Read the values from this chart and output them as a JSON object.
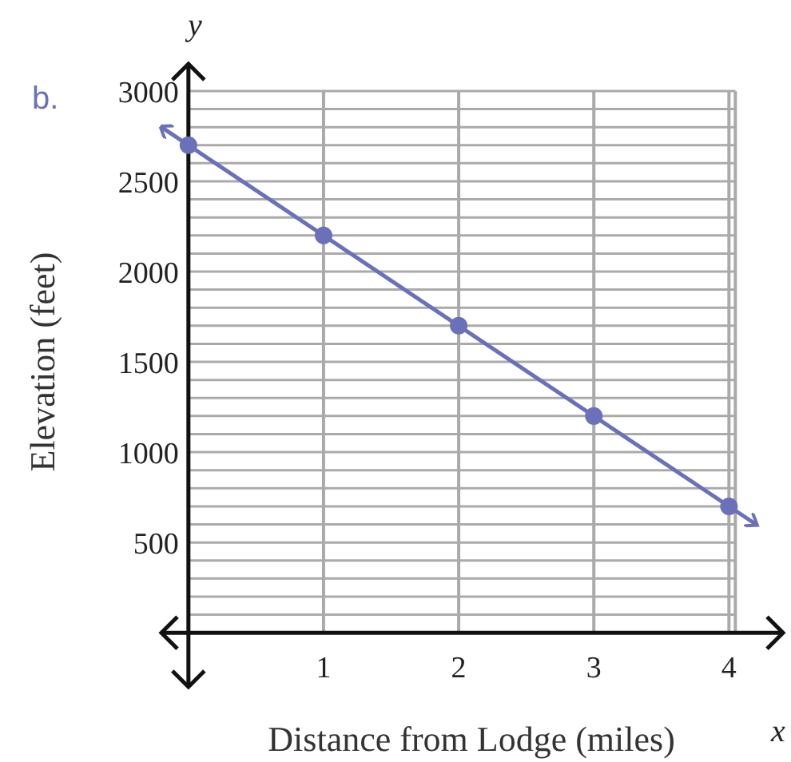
{
  "chart_data": {
    "type": "line",
    "xlabel": "Distance from Lodge (miles)",
    "ylabel": "Elevation (feet)",
    "annotations": [
      "b.",
      "y",
      "x"
    ],
    "xlim": [
      -0.2,
      4.4
    ],
    "ylim": [
      -300,
      3150
    ],
    "xticks": [
      {
        "value": 0,
        "label": null
      },
      1,
      2,
      3,
      4
    ],
    "yticks": [
      {
        "value": 100,
        "label": null
      },
      {
        "value": 200,
        "label": null
      },
      {
        "value": 300,
        "label": null
      },
      {
        "value": 400,
        "label": null
      },
      500,
      {
        "value": 600,
        "label": null
      },
      {
        "value": 700,
        "label": null
      },
      {
        "value": 800,
        "label": null
      },
      {
        "value": 900,
        "label": null
      },
      1000,
      {
        "value": 1100,
        "label": null
      },
      {
        "value": 1200,
        "label": null
      },
      {
        "value": 1300,
        "label": null
      },
      {
        "value": 1400,
        "label": null
      },
      1500,
      {
        "value": 1600,
        "label": null
      },
      {
        "value": 1700,
        "label": null
      },
      {
        "value": 1800,
        "label": null
      },
      {
        "value": 1900,
        "label": null
      },
      2000,
      {
        "value": 2100,
        "label": null
      },
      {
        "value": 2200,
        "label": null
      },
      {
        "value": 2300,
        "label": null
      },
      {
        "value": 2400,
        "label": null
      },
      2500,
      {
        "value": 2600,
        "label": null
      },
      {
        "value": 2700,
        "label": null
      },
      {
        "value": 2800,
        "label": null
      },
      {
        "value": 2900,
        "label": null
      },
      3000
    ],
    "grid": true,
    "series": [
      {
        "color": "#6b71b8",
        "x": [
          -0.2,
          4.2
        ],
        "values": [
          2800,
          600
        ],
        "marker": "none"
      },
      {
        "type": "scatter",
        "color": "#6b71b8",
        "x": [
          0,
          1,
          2,
          3,
          4
        ],
        "values": [
          2700,
          2200,
          1700,
          1200,
          700
        ],
        "marker": "circle"
      }
    ]
  }
}
